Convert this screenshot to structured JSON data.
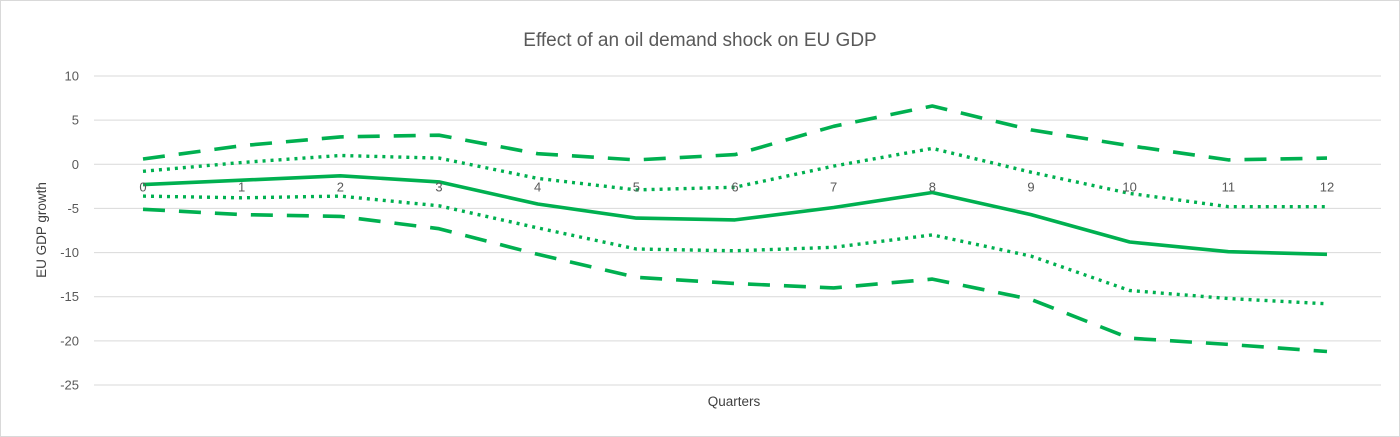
{
  "chart_data": {
    "type": "line",
    "title": "Effect of an oil demand shock on EU GDP",
    "xlabel": "Quarters",
    "ylabel": "EU GDP growth",
    "categories": [
      "0",
      "1",
      "2",
      "3",
      "4",
      "5",
      "6",
      "7",
      "8",
      "9",
      "10",
      "11",
      "12"
    ],
    "yticks": [
      10,
      5,
      0,
      -5,
      -10,
      -15,
      -20,
      -25
    ],
    "ylim": [
      -25,
      10
    ],
    "grid": true,
    "legend": "none",
    "colors": {
      "series": "#00b050",
      "grid": "#d9d9d9",
      "text": "#595959"
    },
    "series": [
      {
        "style": "dashed",
        "values": [
          0.6,
          2.1,
          3.1,
          3.3,
          1.2,
          0.5,
          1.1,
          4.3,
          6.6,
          3.9,
          2.1,
          0.5,
          0.7
        ]
      },
      {
        "style": "dotted",
        "values": [
          -0.8,
          0.2,
          1.0,
          0.7,
          -1.6,
          -2.9,
          -2.6,
          -0.2,
          1.8,
          -0.9,
          -3.3,
          -4.8,
          -4.8
        ]
      },
      {
        "style": "solid",
        "values": [
          -2.3,
          -1.8,
          -1.3,
          -2.0,
          -4.5,
          -6.1,
          -6.3,
          -4.9,
          -3.2,
          -5.7,
          -8.8,
          -9.9,
          -10.2
        ]
      },
      {
        "style": "dotted",
        "values": [
          -3.6,
          -3.8,
          -3.6,
          -4.7,
          -7.2,
          -9.6,
          -9.8,
          -9.4,
          -8.0,
          -10.4,
          -14.3,
          -15.2,
          -15.8
        ]
      },
      {
        "style": "dashed",
        "values": [
          -5.1,
          -5.7,
          -5.9,
          -7.3,
          -10.2,
          -12.8,
          -13.5,
          -14.0,
          -13.0,
          -15.3,
          -19.7,
          -20.4,
          -21.2
        ]
      }
    ]
  }
}
